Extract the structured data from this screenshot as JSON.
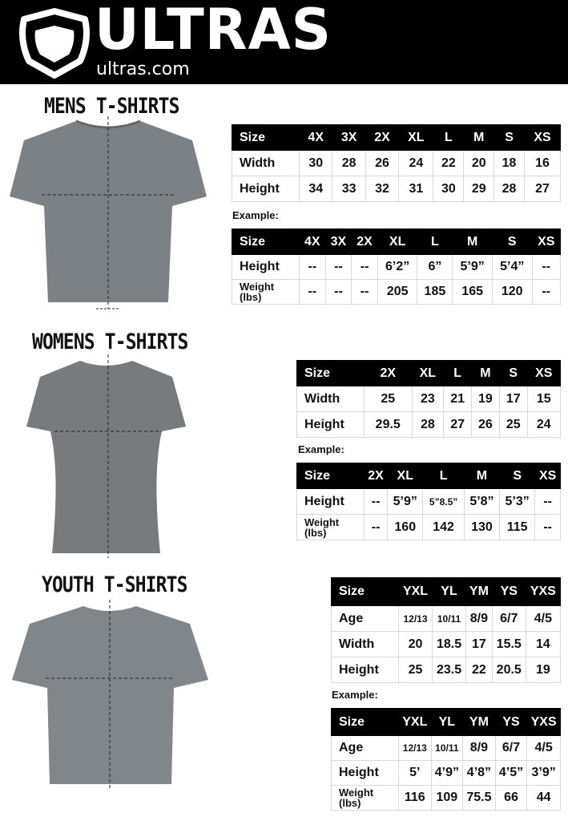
{
  "header": {
    "brand": "ULTRAS",
    "site": "ultras.com",
    "background": "#000000"
  },
  "sections": {
    "mens": {
      "title": "MENS T-SHIRTS",
      "example_label": "Example:",
      "size_table": {
        "header": [
          "Size",
          "4X",
          "3X",
          "2X",
          "XL",
          "L",
          "M",
          "S",
          "XS"
        ],
        "rows": [
          [
            "Width",
            "30",
            "28",
            "26",
            "24",
            "22",
            "20",
            "18",
            "16"
          ],
          [
            "Height",
            "34",
            "33",
            "32",
            "31",
            "30",
            "29",
            "28",
            "27"
          ]
        ]
      },
      "example_table": {
        "header": [
          "Size",
          "4X",
          "3X",
          "2X",
          "XL",
          "L",
          "M",
          "S",
          "XS"
        ],
        "rows": [
          [
            "Height",
            "--",
            "--",
            "--",
            "6’2”",
            "6”",
            "5’9”",
            "5’4”",
            "--"
          ],
          [
            "Weight (lbs)",
            "--",
            "--",
            "--",
            "205",
            "185",
            "165",
            "120",
            "--"
          ]
        ]
      }
    },
    "womens": {
      "title": "WOMENS T-SHIRTS",
      "example_label": "Example:",
      "size_table": {
        "header": [
          "Size",
          "2X",
          "XL",
          "L",
          "M",
          "S",
          "XS"
        ],
        "rows": [
          [
            "Width",
            "25",
            "23",
            "21",
            "19",
            "17",
            "15"
          ],
          [
            "Height",
            "29.5",
            "28",
            "27",
            "26",
            "25",
            "24"
          ]
        ]
      },
      "example_table": {
        "header": [
          "Size",
          "2X",
          "XL",
          "L",
          "M",
          "S",
          "XS"
        ],
        "rows": [
          [
            "Height",
            "--",
            "5’9”",
            "5”8.5”",
            "5’8”",
            "5’3”",
            "--"
          ],
          [
            "Weight (lbs)",
            "--",
            "160",
            "142",
            "130",
            "115",
            "--"
          ]
        ]
      }
    },
    "youth": {
      "title": "YOUTH T-SHIRTS",
      "example_label": "Example:",
      "size_table": {
        "header": [
          "Size",
          "YXL",
          "YL",
          "YM",
          "YS",
          "YXS"
        ],
        "rows": [
          [
            "Age",
            "12/13",
            "10/11",
            "8/9",
            "6/7",
            "4/5"
          ],
          [
            "Width",
            "20",
            "18.5",
            "17",
            "15.5",
            "14"
          ],
          [
            "Height",
            "25",
            "23.5",
            "22",
            "20.5",
            "19"
          ]
        ]
      },
      "example_table": {
        "header": [
          "Size",
          "YXL",
          "YL",
          "YM",
          "YS",
          "YXS"
        ],
        "rows": [
          [
            "Age",
            "12/13",
            "10/11",
            "8/9",
            "6/7",
            "4/5"
          ],
          [
            "Height",
            "5’",
            "4’9”",
            "4’8”",
            "4’5”",
            "3’9”"
          ],
          [
            "Weight (lbs)",
            "116",
            "109",
            "75.5",
            "66",
            "44"
          ]
        ]
      }
    }
  }
}
